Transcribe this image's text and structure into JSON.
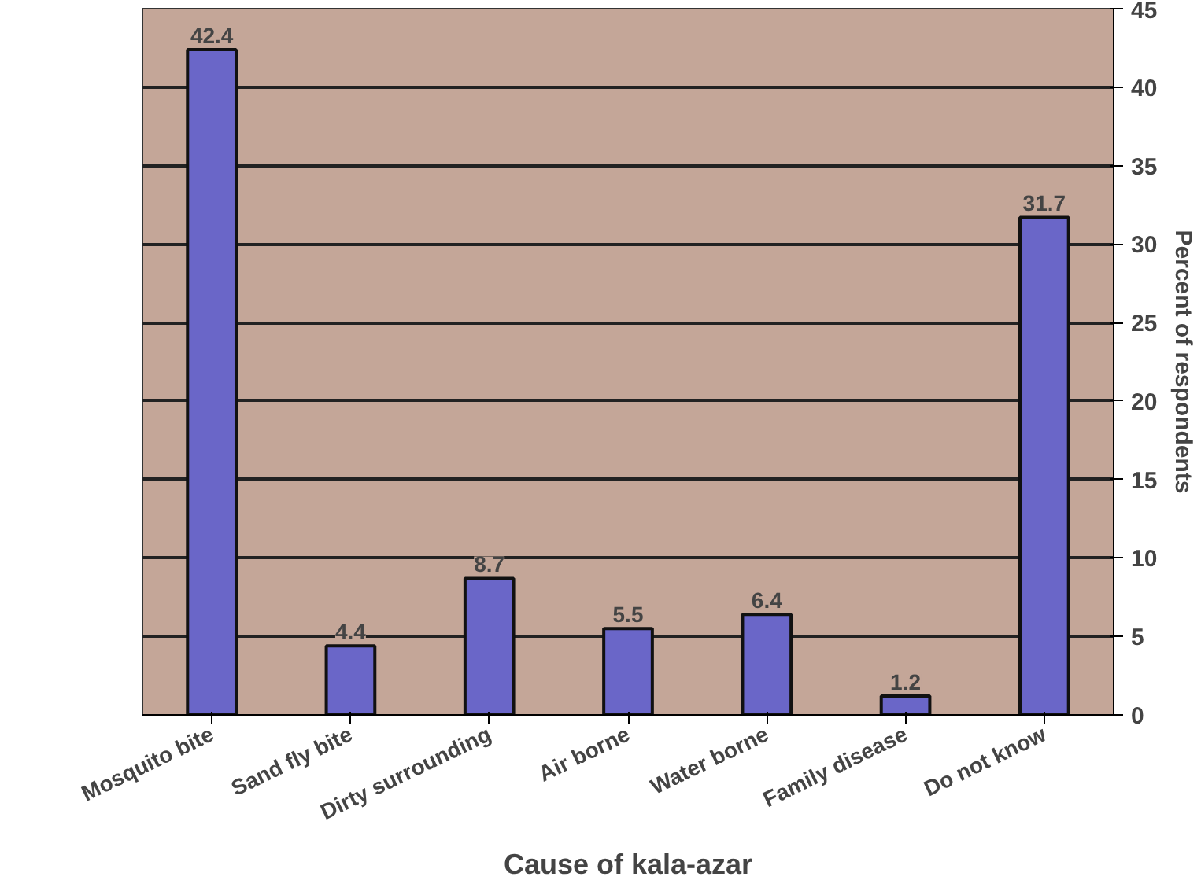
{
  "chart_data": {
    "type": "bar",
    "xlabel": "Cause of kala-azar",
    "ylabel": "Percent of respondents",
    "categories": [
      "Mosquito bite",
      "Sand fly bite",
      "Dirty surrounding",
      "Air borne",
      "Water borne",
      "Family disease",
      "Do not know"
    ],
    "values": [
      42.4,
      4.4,
      8.7,
      5.5,
      6.4,
      1.2,
      31.7
    ],
    "color": "#6a66c8",
    "ylim": [
      0,
      45
    ],
    "yticks": [
      0,
      5,
      10,
      15,
      20,
      25,
      30,
      35,
      40,
      45
    ],
    "grid": "y",
    "data_labels": true
  }
}
